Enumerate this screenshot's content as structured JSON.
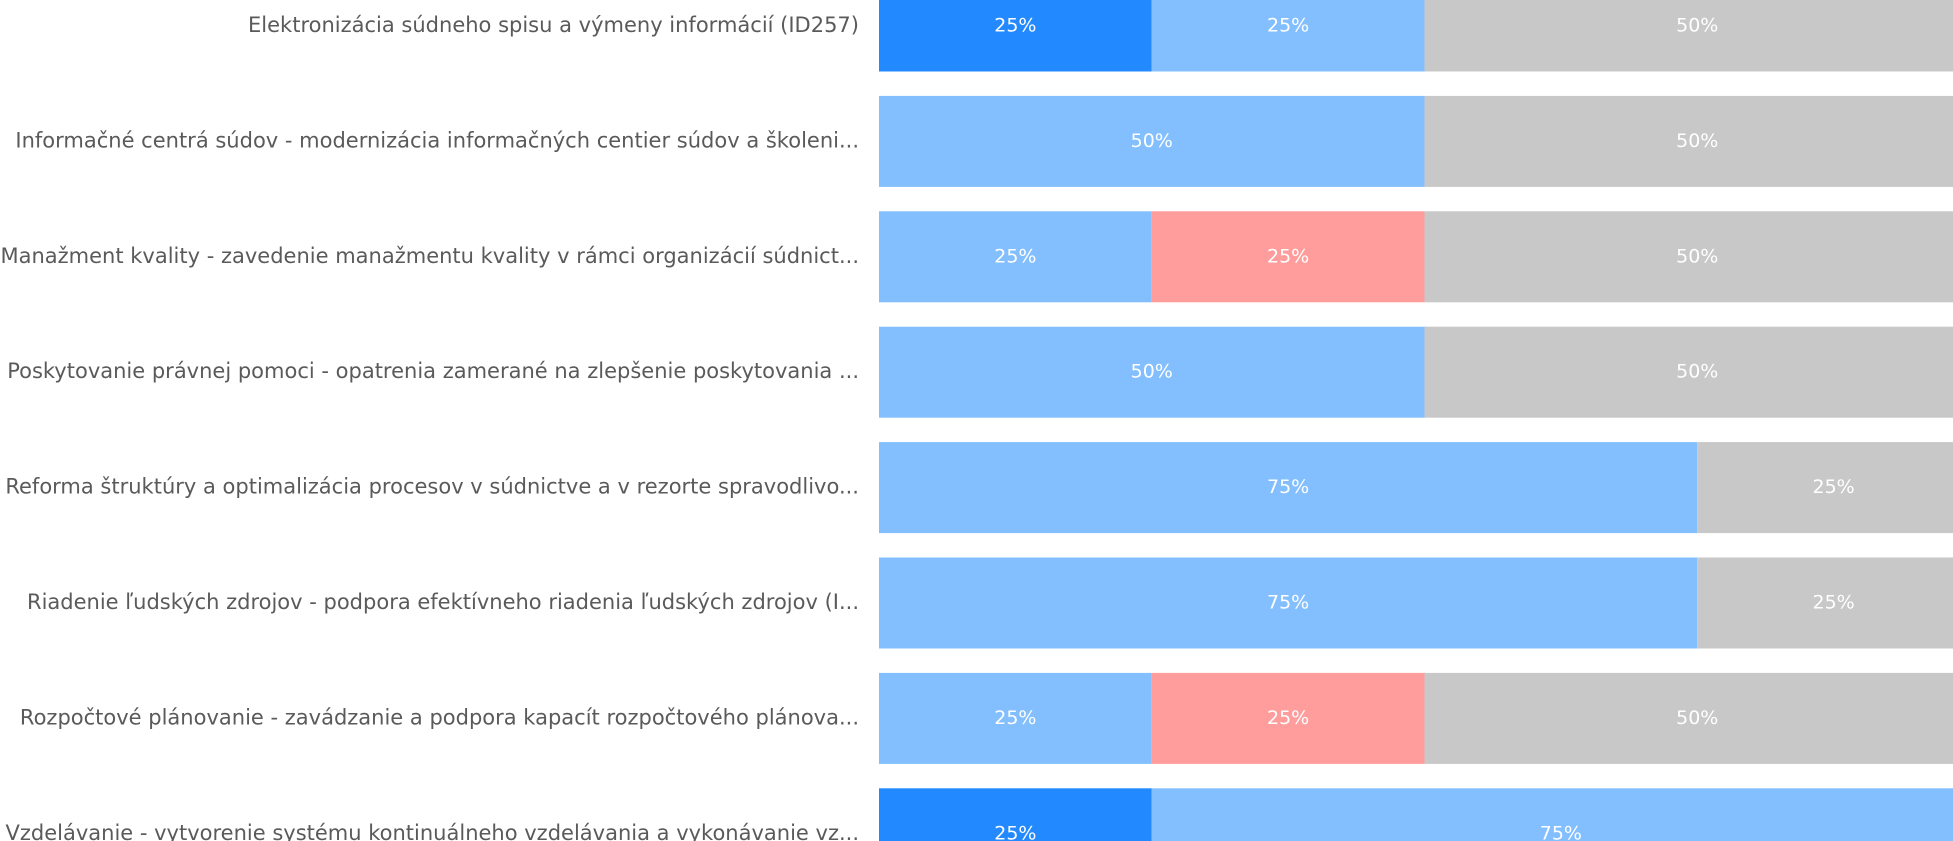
{
  "chart_data": {
    "type": "bar",
    "orientation": "horizontal",
    "stacked": true,
    "categories": [
      "Elektronizácia súdneho spisu a výmeny informácií (ID257)",
      "Informačné centrá súdov - modernizácia informačných centier súdov a školeni...",
      "Manažment kvality - zavedenie manažmentu kvality v rámci organizácií súdnict...",
      "Poskytovanie právnej pomoci - opatrenia zamerané na zlepšenie poskytovania ...",
      "Reforma štruktúry a optimalizácia procesov v súdnictve a v rezorte spravodlivo...",
      "Riadenie ľudských zdrojov - podpora efektívneho riadenia ľudských zdrojov (I...",
      "Rozpočtové plánovanie - zavádzanie a podpora kapacít rozpočtového plánova...",
      "Vzdelávanie - vytvorenie systému kontinuálneho vzdelávania a vykonávanie vz..."
    ],
    "series": [
      {
        "color": "#2289ff",
        "values": [
          25,
          0,
          0,
          0,
          0,
          0,
          0,
          25
        ],
        "value_labels": [
          "25%",
          null,
          null,
          null,
          null,
          null,
          null,
          "25%"
        ]
      },
      {
        "color": "#83bfff",
        "values": [
          25,
          50,
          25,
          50,
          75,
          75,
          25,
          75
        ],
        "value_labels": [
          "25%",
          "50%",
          "25%",
          "50%",
          "75%",
          "75%",
          "25%",
          "75%"
        ]
      },
      {
        "color": "#ff9d9d",
        "values": [
          0,
          0,
          25,
          0,
          0,
          0,
          25,
          0
        ],
        "value_labels": [
          null,
          null,
          "25%",
          null,
          null,
          null,
          "25%",
          null
        ]
      },
      {
        "color": "#c8c8c8",
        "values": [
          50,
          50,
          50,
          50,
          25,
          25,
          50,
          0
        ],
        "value_labels": [
          "50%",
          "50%",
          "50%",
          "50%",
          "25%",
          "25%",
          "50%",
          null
        ]
      }
    ],
    "xlim": [
      0,
      100
    ]
  }
}
